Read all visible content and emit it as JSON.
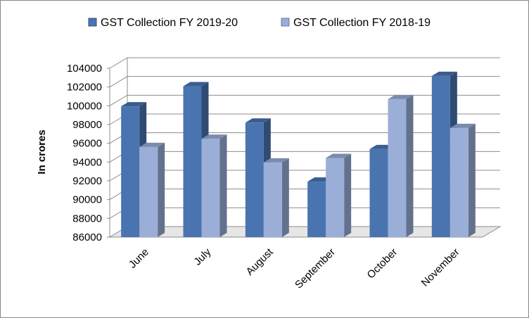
{
  "chart_data": {
    "type": "bar",
    "style": "3d-clustered-column",
    "categories": [
      "June",
      "July",
      "August",
      "September",
      "October",
      "November"
    ],
    "series": [
      {
        "name": "GST Collection FY 2019-20",
        "values": [
          99939,
          102083,
          98202,
          91916,
          95380,
          103184
        ],
        "color": "#4a74b0"
      },
      {
        "name": "GST Collection FY 2018-19",
        "values": [
          95610,
          96483,
          93960,
          94442,
          100710,
          97637
        ],
        "color": "#9aaed8"
      }
    ],
    "ylabel": "In crores",
    "xlabel": "",
    "ylim": [
      86000,
      104000
    ],
    "yticks": [
      86000,
      88000,
      90000,
      92000,
      94000,
      96000,
      98000,
      100000,
      102000,
      104000
    ],
    "grid": true,
    "legend": "top"
  },
  "colors": {
    "gridline": "#8c8c8c",
    "floor": "#e6e6e6"
  }
}
